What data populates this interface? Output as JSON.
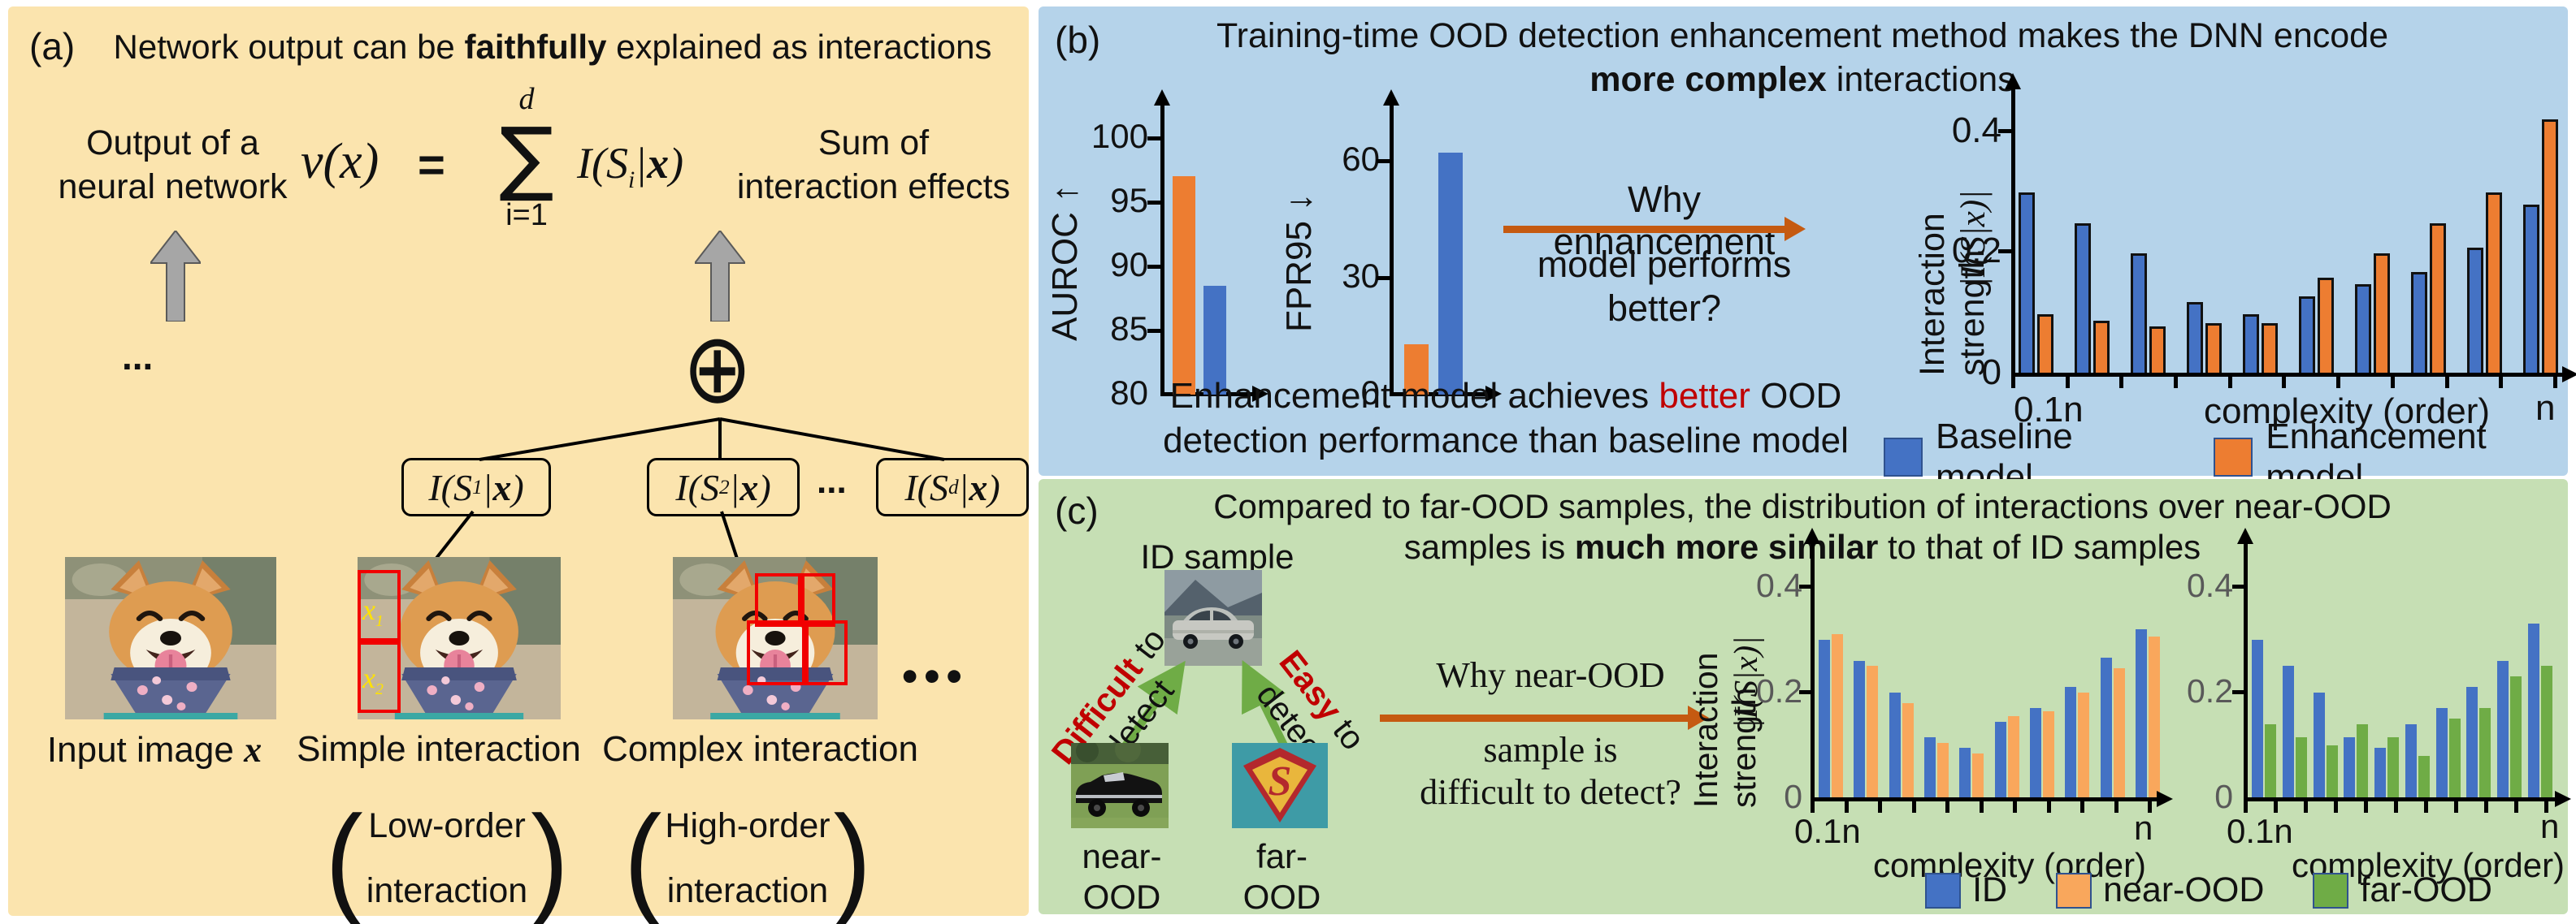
{
  "colors": {
    "panel_a_bg": "#FBE4AE",
    "panel_b_bg": "#B5D3EA",
    "panel_c_bg": "#C6DFB4",
    "accent_arrow": "#C55A11",
    "red_text": "#C00000",
    "green_arrow": "#6FAC46",
    "baseline_blue": "#4472C4",
    "enhancement_orange": "#ED7D31",
    "near_ood_orange": "#F9A75C",
    "far_ood_green": "#6FAC46"
  },
  "panel_a": {
    "tag": "(a)",
    "title_pre": "Network output can be ",
    "title_bold": "faithfully",
    "title_post": " explained as interactions",
    "output_label_1": "Output of a",
    "output_label_2": "neural network",
    "formula": {
      "v": "v(x)",
      "equals": "=",
      "sum_sup": "d",
      "sum": "∑",
      "sum_sub": "i=1",
      "term_pre": "I(S",
      "term_sub": "i",
      "term_bar": "|",
      "term_x": "x",
      "term_close": ")"
    },
    "sum_label_1": "Sum of",
    "sum_label_2": "interaction effects",
    "stack_dots": "...",
    "oplus": "⊕",
    "interaction_boxes": [
      {
        "pre": "I(S",
        "sub": "1",
        "bar": "|",
        "x": "x",
        "close": ")"
      },
      {
        "pre": "I(S",
        "sub": "2",
        "bar": "|",
        "x": "x",
        "close": ")"
      },
      {
        "pre": "I(S",
        "sub": "d",
        "bar": "|",
        "x": "x",
        "close": ")"
      }
    ],
    "boxes_dots": "...",
    "patch_labels": [
      {
        "pre": "x",
        "sub": "1"
      },
      {
        "pre": "x",
        "sub": "2"
      }
    ],
    "images_dots": "•••",
    "caption_input_pre": "Input image ",
    "caption_input_x": "x",
    "caption_simple": "Simple interaction",
    "caption_complex": "Complex interaction",
    "paren_open": "(",
    "paren_close": ")",
    "low_order_1": "Low-order",
    "low_order_2": "interaction",
    "high_order_1": "High-order",
    "high_order_2": "interaction"
  },
  "panel_b": {
    "tag": "(b)",
    "title_1": "Training-time OOD detection enhancement method makes the DNN encode",
    "title_2_bold": "more complex",
    "title_2_post": " interactions",
    "question_1": "Why enhancement",
    "question_2": "model performs",
    "question_3": "better?",
    "caption_pre": "Enhancement model achieves ",
    "caption_red": "better",
    "caption_post": " OOD",
    "caption_line2": "detection performance than baseline model",
    "legend": [
      {
        "label": "Baseline model",
        "color": "#4472C4"
      },
      {
        "label": "Enhancement model",
        "color": "#ED7D31"
      }
    ]
  },
  "panel_c": {
    "tag": "(c)",
    "title_1": "Compared to far-OOD samples, the distribution of interactions over near-OOD",
    "title_2_pre": "samples is ",
    "title_2_bold": "much more similar",
    "title_2_post": " to that of ID samples",
    "id_sample_label": "ID sample",
    "near_ood_label_1": "near-OOD",
    "near_ood_label_2": "sample",
    "far_ood_label_1": "far-OOD",
    "far_ood_label_2": "sample",
    "difficult_red": "Difficult",
    "difficult_black": " to",
    "difficult_line2": "detect",
    "easy_red": "Easy",
    "easy_black": " to",
    "easy_line2": "detect",
    "question_1": "Why near-OOD",
    "question_2": "sample is",
    "question_3": "difficult to detect?",
    "legend": [
      {
        "label": "ID",
        "color": "#4472C4"
      },
      {
        "label": "near-OOD",
        "color": "#F9A75C"
      },
      {
        "label": "far-OOD",
        "color": "#6FAC46"
      }
    ]
  },
  "chart_data": [
    {
      "id": "auroc",
      "type": "bar",
      "ylabel": "AUROC ↑",
      "ylim": [
        80,
        100
      ],
      "yticks": [
        "100",
        "95",
        "90",
        "85",
        "80"
      ],
      "series": [
        {
          "name": "Enhancement model",
          "color": "#ED7D31",
          "values": [
            97
          ]
        },
        {
          "name": "Baseline model",
          "color": "#4472C4",
          "values": [
            88.5
          ]
        }
      ]
    },
    {
      "id": "fpr95",
      "type": "bar",
      "ylabel": "FPR95 ↓",
      "ylim": [
        0,
        66
      ],
      "yticks": [
        "60",
        "30",
        "0"
      ],
      "series": [
        {
          "name": "Enhancement model",
          "color": "#ED7D31",
          "values": [
            13
          ]
        },
        {
          "name": "Baseline model",
          "color": "#4472C4",
          "values": [
            62
          ]
        }
      ]
    },
    {
      "id": "interaction_strength_b",
      "type": "bar",
      "ylabel_line1": "Interaction strength",
      "ylabel_line2": "|I(S|x)|",
      "xlabel": "complexity (order)",
      "x_first": "0.1n",
      "x_last": "n",
      "ylim": [
        0,
        0.45
      ],
      "yticks": [
        "0.4",
        "0.2",
        "0"
      ],
      "outlined": true,
      "legend_position": "bottom",
      "num_groups": 10,
      "series": [
        {
          "name": "Baseline model",
          "color": "#4472C4",
          "values": [
            0.3,
            0.25,
            0.2,
            0.12,
            0.1,
            0.13,
            0.15,
            0.17,
            0.21,
            0.28
          ]
        },
        {
          "name": "Enhancement model",
          "color": "#ED7D31",
          "values": [
            0.1,
            0.09,
            0.08,
            0.085,
            0.085,
            0.16,
            0.2,
            0.25,
            0.3,
            0.42
          ]
        }
      ]
    },
    {
      "id": "interaction_strength_near",
      "type": "bar",
      "ylabel_line1": "Interaction strength",
      "ylabel_line2": "|I(S|x)|",
      "xlabel": "complexity (order)",
      "x_first": "0.1n",
      "x_last": "n",
      "ylim": [
        0,
        0.45
      ],
      "yticks": [
        "0.4",
        "0.2",
        "0"
      ],
      "num_groups": 10,
      "series": [
        {
          "name": "ID",
          "color": "#4472C4",
          "values": [
            0.3,
            0.26,
            0.2,
            0.115,
            0.095,
            0.145,
            0.17,
            0.21,
            0.265,
            0.32
          ]
        },
        {
          "name": "near-OOD",
          "color": "#F9A75C",
          "values": [
            0.31,
            0.25,
            0.18,
            0.105,
            0.085,
            0.155,
            0.165,
            0.2,
            0.245,
            0.305
          ]
        }
      ]
    },
    {
      "id": "interaction_strength_far",
      "type": "bar",
      "xlabel": "complexity (order)",
      "x_first": "0.1n",
      "x_last": "n",
      "ylim": [
        0,
        0.45
      ],
      "yticks": [
        "0.4",
        "0.2",
        "0"
      ],
      "num_groups": 10,
      "series": [
        {
          "name": "ID",
          "color": "#4472C4",
          "values": [
            0.3,
            0.25,
            0.2,
            0.115,
            0.095,
            0.14,
            0.17,
            0.21,
            0.26,
            0.33
          ]
        },
        {
          "name": "far-OOD",
          "color": "#6FAC46",
          "values": [
            0.14,
            0.115,
            0.1,
            0.14,
            0.115,
            0.08,
            0.15,
            0.17,
            0.23,
            0.25
          ]
        }
      ]
    }
  ]
}
